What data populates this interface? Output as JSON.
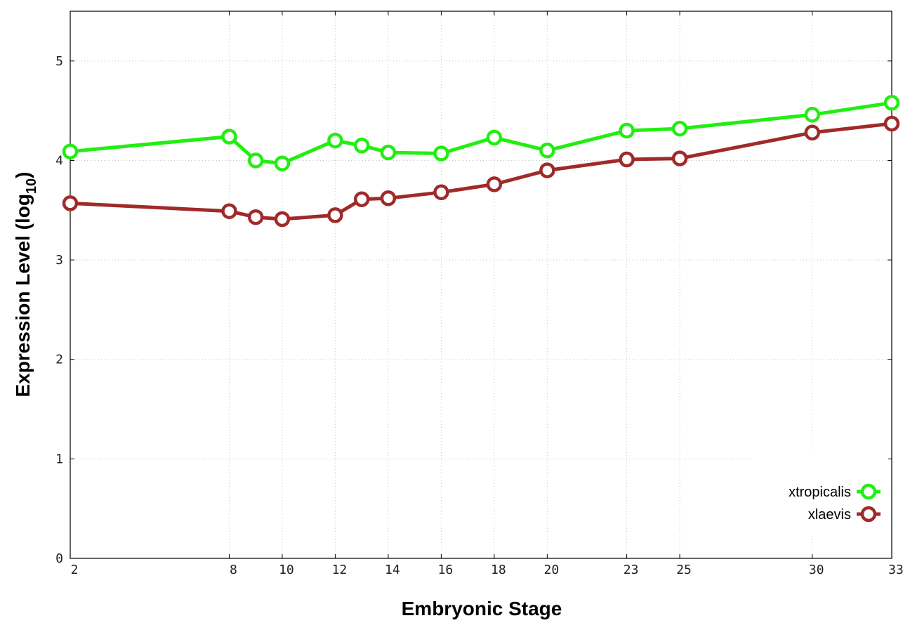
{
  "chart_data": {
    "type": "line",
    "xlabel": "Embryonic Stage",
    "ylabel": {
      "main": "Expression Level (log",
      "sub": "10",
      "close": ")"
    },
    "x_tick_labels": [
      "2",
      "8",
      "10",
      "12",
      "14",
      "16",
      "18",
      "20",
      "23",
      "25",
      "30",
      "33"
    ],
    "y_ticks": [
      "0",
      "1",
      "2",
      "3",
      "4",
      "5"
    ],
    "ylim": [
      0,
      5.5
    ],
    "x_categories": [
      "2",
      "8",
      "9",
      "10",
      "12",
      "13",
      "14",
      "16",
      "18",
      "20",
      "23",
      "25",
      "30",
      "33"
    ],
    "grid": true,
    "legend_position": "bottom-right",
    "series": [
      {
        "name": "xtropicalis",
        "color": "#22ee11",
        "values": [
          4.09,
          4.24,
          4.0,
          3.97,
          4.2,
          4.15,
          4.08,
          4.07,
          4.23,
          4.1,
          4.3,
          4.32,
          4.46,
          4.58
        ]
      },
      {
        "name": "xlaevis",
        "color": "#a02a2a",
        "values": [
          3.57,
          3.49,
          3.43,
          3.41,
          3.45,
          3.61,
          3.62,
          3.68,
          3.76,
          3.9,
          4.01,
          4.02,
          4.28,
          4.37
        ]
      }
    ]
  }
}
